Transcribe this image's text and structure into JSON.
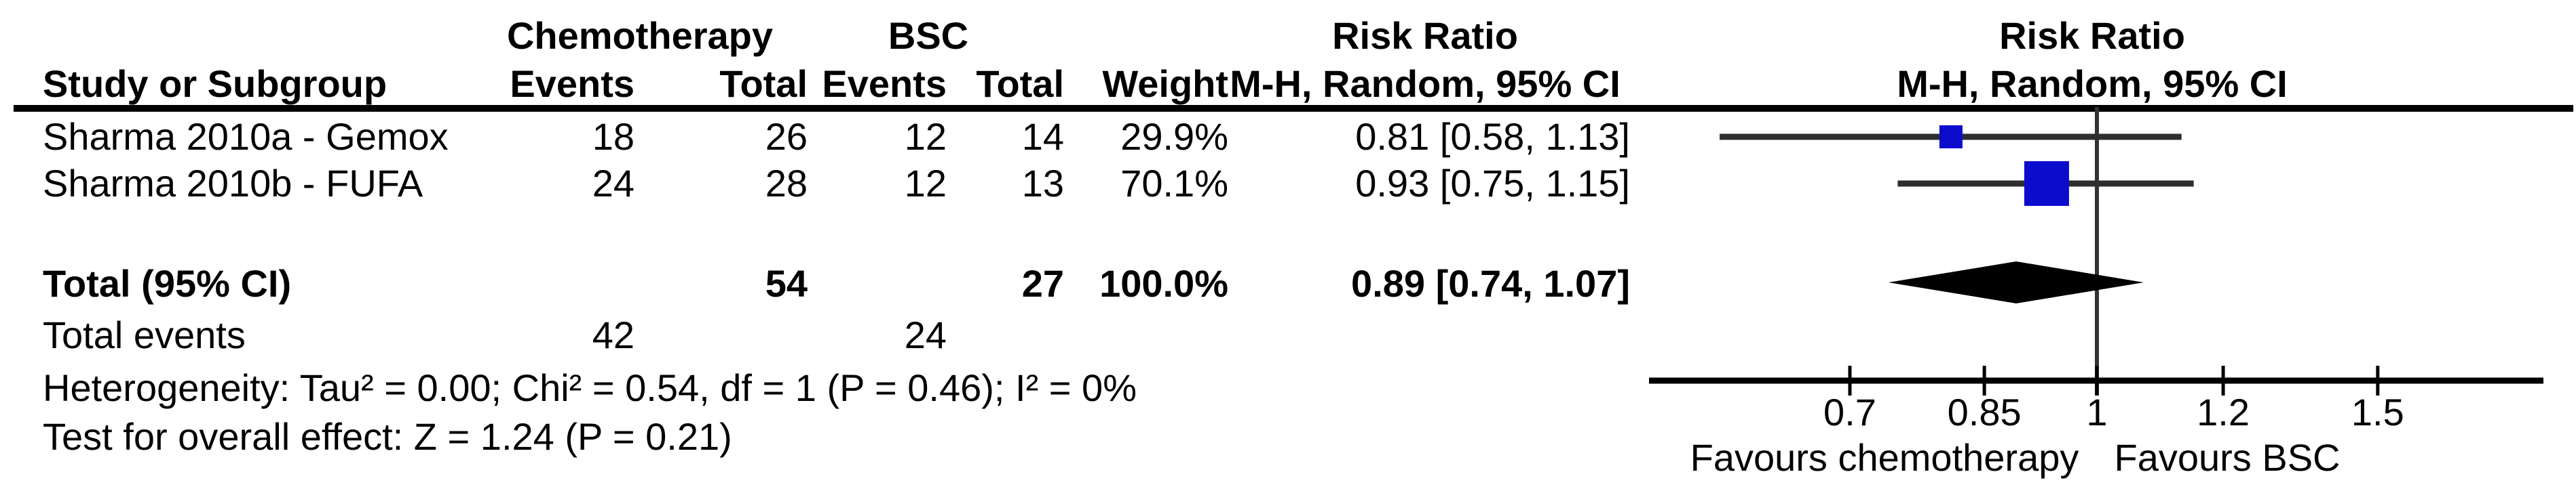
{
  "table": {
    "header": {
      "study": "Study or Subgroup",
      "group1": "Chemotherapy",
      "group2": "BSC",
      "events": "Events",
      "total": "Total",
      "weight": "Weight",
      "risk_ratio": "Risk Ratio",
      "method": "M-H, Random, 95% CI"
    },
    "rows": [
      {
        "study": "Sharma 2010a - Gemox",
        "chemo_events": "18",
        "chemo_total": "26",
        "bsc_events": "12",
        "bsc_total": "14",
        "weight": "29.9%",
        "ci": "0.81 [0.58, 1.13]"
      },
      {
        "study": "Sharma 2010b - FUFA",
        "chemo_events": "24",
        "chemo_total": "28",
        "bsc_events": "12",
        "bsc_total": "13",
        "weight": "70.1%",
        "ci": "0.93 [0.75, 1.15]"
      }
    ],
    "total_row": {
      "label": "Total (95% CI)",
      "chemo_total": "54",
      "bsc_total": "27",
      "weight": "100.0%",
      "ci": "0.89 [0.74, 1.07]"
    },
    "total_events": {
      "label": "Total events",
      "chemo": "42",
      "bsc": "24"
    },
    "heterogeneity": "Heterogeneity: Tau² = 0.00; Chi² = 0.54, df = 1 (P = 0.46); I² = 0%",
    "overall_effect": "Test for overall effect: Z = 1.24 (P = 0.21)"
  },
  "chart_data": {
    "type": "forest",
    "effect_measure": "Risk Ratio",
    "method": "M-H, Random, 95% CI",
    "scale": "log10",
    "null_line": 1,
    "axis_ticks": [
      0.7,
      0.85,
      1,
      1.2,
      1.5
    ],
    "axis_range": [
      0.52,
      1.9
    ],
    "studies": [
      {
        "name": "Sharma 2010a - Gemox",
        "rr": 0.81,
        "ci_low": 0.58,
        "ci_high": 1.13,
        "weight_pct": 29.9
      },
      {
        "name": "Sharma 2010b - FUFA",
        "rr": 0.93,
        "ci_low": 0.75,
        "ci_high": 1.15,
        "weight_pct": 70.1
      }
    ],
    "total": {
      "rr": 0.89,
      "ci_low": 0.74,
      "ci_high": 1.07
    },
    "favours_left": "Favours chemotherapy",
    "favours_right": "Favours BSC",
    "colors": {
      "marker": "#0c0ccd",
      "ci_line": "#2e2e2e",
      "null_line": "#333333",
      "axis": "#000000",
      "diamond": "#000000",
      "text": "#000000"
    }
  }
}
